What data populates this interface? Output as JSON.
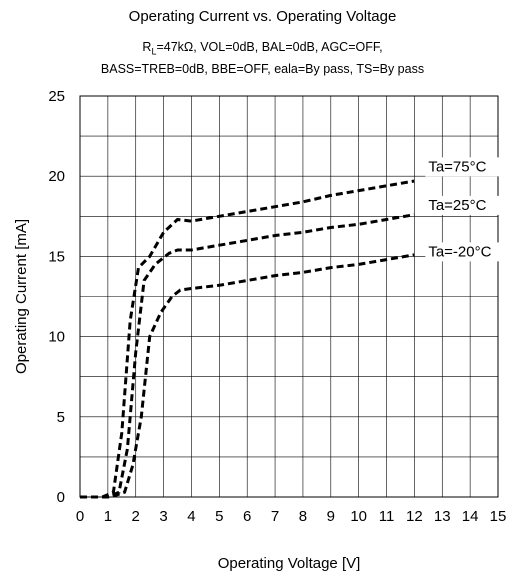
{
  "chart_data": {
    "type": "line",
    "title": "Operating Current vs. Operating Voltage",
    "conditions": {
      "line1_prefix": "R",
      "line1_sub": "L",
      "line1_rest": "=47kΩ,  VOL=0dB,  BAL=0dB,   AGC=OFF,",
      "line2": "BASS=TREB=0dB,  BBE=OFF,  eala=By pass,  TS=By pass"
    },
    "xlabel": "Operating Voltage [V]",
    "ylabel": "Operating Current  [mA]",
    "xlim": [
      0,
      15
    ],
    "ylim": [
      0,
      25
    ],
    "xticks": [
      "0",
      "1",
      "2",
      "3",
      "4",
      "5",
      "6",
      "7",
      "8",
      "9",
      "10",
      "11",
      "12",
      "13",
      "14",
      "15"
    ],
    "yticks": [
      "0",
      "5",
      "10",
      "15",
      "20",
      "25"
    ],
    "grid": true,
    "series": [
      {
        "name": "Ta=75°C",
        "label_at": [
          12.5,
          20.3
        ],
        "points": [
          [
            0,
            0
          ],
          [
            0.8,
            0
          ],
          [
            1.2,
            0.3
          ],
          [
            1.5,
            4
          ],
          [
            1.8,
            11
          ],
          [
            2.1,
            14.3
          ],
          [
            2.5,
            15
          ],
          [
            3.0,
            16.5
          ],
          [
            3.5,
            17.3
          ],
          [
            4,
            17.2
          ],
          [
            5,
            17.5
          ],
          [
            6,
            17.8
          ],
          [
            7,
            18.1
          ],
          [
            8,
            18.4
          ],
          [
            9,
            18.8
          ],
          [
            10,
            19.1
          ],
          [
            11,
            19.4
          ],
          [
            12,
            19.7
          ]
        ]
      },
      {
        "name": "Ta=25°C",
        "label_at": [
          12.5,
          17.9
        ],
        "points": [
          [
            0,
            0
          ],
          [
            1.0,
            0
          ],
          [
            1.4,
            0.3
          ],
          [
            1.7,
            3
          ],
          [
            2.0,
            9
          ],
          [
            2.3,
            13.5
          ],
          [
            2.7,
            14.5
          ],
          [
            3.2,
            15.2
          ],
          [
            3.5,
            15.4
          ],
          [
            4,
            15.4
          ],
          [
            5,
            15.7
          ],
          [
            6,
            16.0
          ],
          [
            7,
            16.3
          ],
          [
            8,
            16.5
          ],
          [
            9,
            16.8
          ],
          [
            10,
            17.0
          ],
          [
            11,
            17.3
          ],
          [
            12,
            17.6
          ]
        ]
      },
      {
        "name": "Ta=-20°C",
        "label_at": [
          12.5,
          15.0
        ],
        "points": [
          [
            0,
            0
          ],
          [
            1.1,
            0
          ],
          [
            1.6,
            0.3
          ],
          [
            1.9,
            2
          ],
          [
            2.2,
            5
          ],
          [
            2.5,
            10
          ],
          [
            2.9,
            11.5
          ],
          [
            3.3,
            12.5
          ],
          [
            3.6,
            12.9
          ],
          [
            4,
            13.0
          ],
          [
            5,
            13.2
          ],
          [
            6,
            13.5
          ],
          [
            7,
            13.8
          ],
          [
            8,
            14.0
          ],
          [
            9,
            14.3
          ],
          [
            10,
            14.5
          ],
          [
            11,
            14.8
          ],
          [
            12,
            15.1
          ]
        ]
      }
    ],
    "colors": {
      "line": "#000000",
      "grid": "#000000"
    }
  }
}
